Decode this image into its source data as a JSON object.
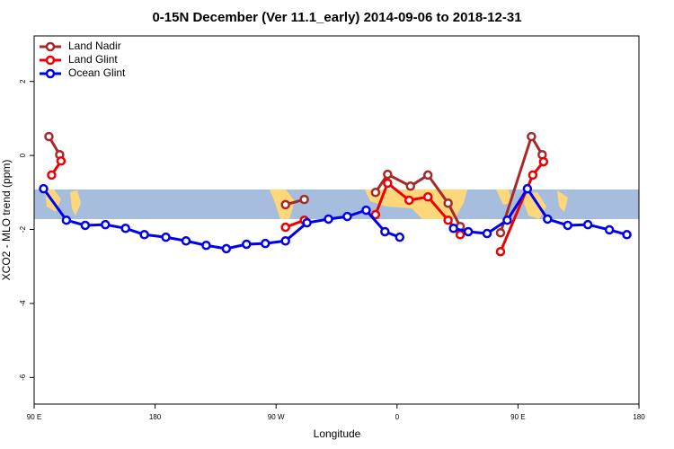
{
  "chart_data": {
    "type": "line",
    "title": "0-15N December (Ver 11.1_early)   2014-09-06 to 2018-12-31",
    "xlabel": "Longitude",
    "ylabel": "XCO2 - MLO trend (ppm)",
    "xlim": [
      90,
      540
    ],
    "ylim": [
      -6.72,
      3.23
    ],
    "xticks": [
      {
        "value": 90,
        "label": "90 E"
      },
      180,
      {
        "value": 270,
        "label": "90 W"
      },
      {
        "value": 360,
        "label": "0"
      },
      {
        "value": 450,
        "label": "90 E"
      },
      {
        "value": 540,
        "label": "180"
      }
    ],
    "yticks": [
      2,
      0,
      -2,
      -4,
      -6
    ],
    "legend": "top-left",
    "series": [
      {
        "name": "Land Nadir",
        "color": "#a52a2a",
        "x": [
          101,
          109,
          null,
          277,
          291,
          null,
          344,
          353,
          370,
          383,
          398,
          407,
          null,
          437,
          460,
          468
        ],
        "values": [
          0.51,
          0.02,
          null,
          -1.33,
          -1.19,
          null,
          -1.0,
          -0.51,
          -0.83,
          -0.53,
          -1.29,
          -1.92,
          null,
          -2.09,
          0.51,
          0.02
        ]
      },
      {
        "name": "Land Glint",
        "color": "#ee0000",
        "x": [
          103,
          110,
          null,
          277,
          291,
          null,
          344,
          353,
          369,
          383,
          398,
          407,
          null,
          437,
          461,
          469
        ],
        "values": [
          -0.53,
          -0.15,
          null,
          -1.94,
          -1.75,
          null,
          -1.6,
          -0.75,
          -1.21,
          -1.12,
          -1.75,
          -2.14,
          null,
          -2.6,
          -0.53,
          -0.17
        ]
      },
      {
        "name": "Ocean Glint",
        "color": "#0000ee",
        "x": [
          97,
          114,
          128,
          143,
          158,
          172,
          188,
          203,
          218,
          233,
          248,
          262,
          277,
          293,
          309,
          323,
          337,
          351,
          362,
          null,
          402,
          413,
          427,
          442,
          457,
          472,
          487,
          502,
          518,
          531
        ],
        "values": [
          -0.9,
          -1.75,
          -1.89,
          -1.87,
          -1.97,
          -2.14,
          -2.21,
          -2.31,
          -2.43,
          -2.52,
          -2.4,
          -2.38,
          -2.31,
          -1.82,
          -1.72,
          -1.65,
          -1.48,
          -2.06,
          -2.21,
          null,
          -1.97,
          -2.06,
          -2.11,
          -1.75,
          -0.9,
          -1.72,
          -1.89,
          -1.87,
          -2.01,
          -2.14
        ]
      }
    ]
  }
}
